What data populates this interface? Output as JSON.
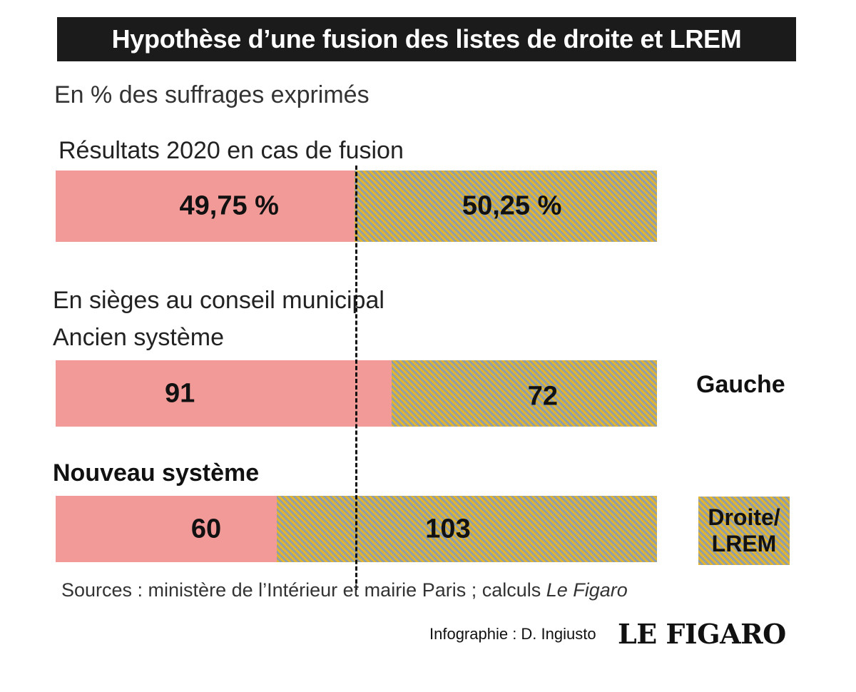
{
  "title": "Hypothèse d’une fusion des listes de droite et LREM",
  "subtitle": "En % des suffrages exprimés",
  "sections": {
    "results_label": "Résultats 2020 en cas de fusion",
    "seats_label": "En sièges au conseil municipal",
    "old_system_label": "Ancien système",
    "new_system_label": "Nouveau système"
  },
  "legend": {
    "left_label": "Gauche",
    "right_label_line1": "Droite/",
    "right_label_line2": "LREM"
  },
  "source": {
    "text": "Sources : ministère de l’Intérieur et mairie Paris ; calculs ",
    "italic": "Le Figaro"
  },
  "credit": "Infographie : D. Ingiusto",
  "logo": "LE FIGARO",
  "colors": {
    "gauche": "#f19a97",
    "droite_stripe_a": "#e1b532",
    "droite_stripe_b": "#8f9ea9",
    "title_bg": "#1b1b1b"
  },
  "chart_data": [
    {
      "type": "bar",
      "stacked": true,
      "orientation": "horizontal",
      "title": "Résultats 2020 en cas de fusion",
      "unit": "%",
      "series": [
        {
          "name": "Gauche",
          "value": 49.75,
          "label": "49,75 %"
        },
        {
          "name": "Droite/LREM",
          "value": 50.25,
          "label": "50,25 %"
        }
      ]
    },
    {
      "type": "bar",
      "stacked": true,
      "orientation": "horizontal",
      "title": "Ancien système",
      "unit": "sièges",
      "series": [
        {
          "name": "Gauche",
          "value": 91,
          "label": "91"
        },
        {
          "name": "Droite/LREM",
          "value": 72,
          "label": "72"
        }
      ]
    },
    {
      "type": "bar",
      "stacked": true,
      "orientation": "horizontal",
      "title": "Nouveau système",
      "unit": "sièges",
      "series": [
        {
          "name": "Gauche",
          "value": 60,
          "label": "60"
        },
        {
          "name": "Droite/LREM",
          "value": 103,
          "label": "103"
        }
      ]
    }
  ]
}
